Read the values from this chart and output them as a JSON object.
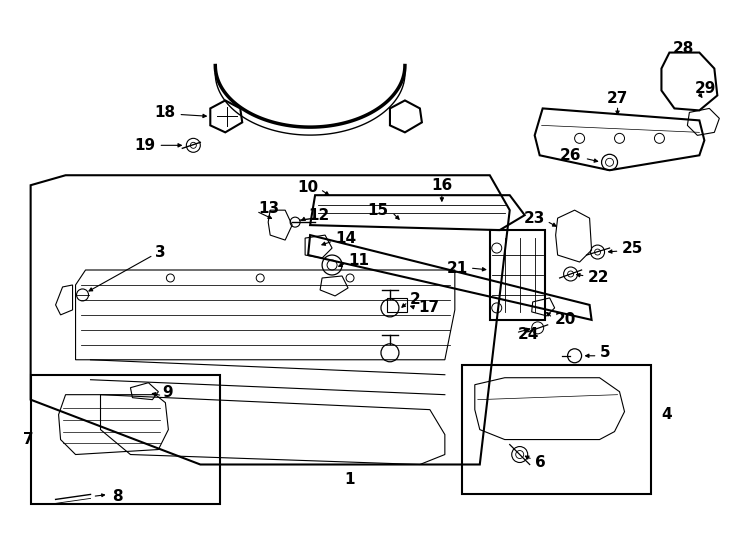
{
  "bg_color": "#ffffff",
  "line_color": "#000000",
  "label_color": "#000000",
  "fig_width": 7.34,
  "fig_height": 5.4,
  "dpi": 100
}
